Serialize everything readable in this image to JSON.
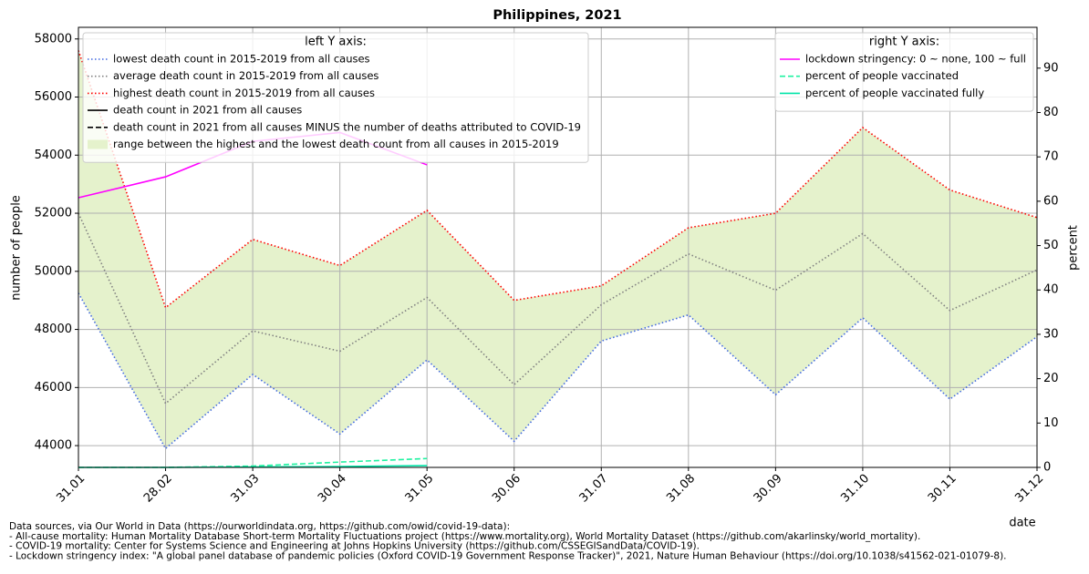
{
  "chart_data": {
    "type": "line",
    "title": "Philippines, 2021",
    "xlabel": "date",
    "ylabel": "number of people",
    "y2label": "percent",
    "categories": [
      "31.01",
      "28.02",
      "31.03",
      "30.04",
      "31.05",
      "30.06",
      "31.07",
      "31.08",
      "30.09",
      "31.10",
      "30.11",
      "31.12"
    ],
    "ylim": [
      43250,
      58400
    ],
    "yticks": [
      44000,
      46000,
      48000,
      50000,
      52000,
      54000,
      56000,
      58000
    ],
    "y2lim": [
      0,
      99.2
    ],
    "y2ticks": [
      0,
      10,
      20,
      30,
      40,
      50,
      60,
      70,
      80,
      90
    ],
    "grid": true,
    "legend_left_title": "left Y axis:",
    "legend_right_title": "right Y axis:",
    "series": [
      {
        "name": "lowest death count in 2015-2019 from all causes",
        "color": "#4169e1",
        "style": "dotted",
        "values": [
          49250,
          43900,
          46450,
          44400,
          46950,
          44150,
          47600,
          48500,
          45750,
          48400,
          45600,
          47750
        ]
      },
      {
        "name": "average death count in 2015-2019 from all causes",
        "color": "#808080",
        "style": "dotted",
        "values": [
          52000,
          45450,
          47950,
          47250,
          49100,
          46100,
          48850,
          50600,
          49350,
          51300,
          48650,
          50050
        ]
      },
      {
        "name": "highest death count in 2015-2019 from all causes",
        "color": "#ff0000",
        "style": "dotted",
        "values": [
          57600,
          48750,
          51100,
          50200,
          52100,
          49000,
          49500,
          51500,
          52000,
          54950,
          52800,
          51850
        ]
      },
      {
        "name": "death count in 2021 from all causes",
        "color": "#000000",
        "style": "solid",
        "values": [
          null,
          null,
          null,
          null,
          null,
          null,
          null,
          null,
          null,
          null,
          null,
          null
        ]
      },
      {
        "name": "death count in 2021 from all causes MINUS the number of deaths attributed to COVID-19",
        "color": "#000000",
        "style": "dashed",
        "values": [
          null,
          null,
          null,
          null,
          null,
          null,
          null,
          null,
          null,
          null,
          null,
          null
        ]
      },
      {
        "name": "lockdown stringency: 0 ~ none, 100 ~ full",
        "color": "#ff00ff",
        "style": "solid",
        "axis": "y2",
        "values": [
          60.8,
          65.5,
          73.5,
          75.5,
          68.2,
          null,
          null,
          null,
          null,
          null,
          null,
          null
        ]
      },
      {
        "name": "percent of people vaccinated",
        "color": "#1ef2a0",
        "style": "dashed",
        "axis": "y2",
        "values": [
          0,
          0,
          0.3,
          1.2,
          2.0,
          null,
          null,
          null,
          null,
          null,
          null,
          null
        ]
      },
      {
        "name": "percent of people vaccinated fully",
        "color": "#00e5a8",
        "style": "solid",
        "axis": "y2",
        "values": [
          0,
          0,
          0.1,
          0.2,
          0.4,
          null,
          null,
          null,
          null,
          null,
          null,
          null
        ]
      }
    ],
    "band": {
      "name": "range between the highest and the lowest death count from all causes in 2015-2019",
      "color": "#e5f2cc",
      "upper": 2,
      "lower": 0
    },
    "notes": [
      "Data sources, via Our World in Data (https://ourworldindata.org, https://github.com/owid/covid-19-data):",
      "- All-cause mortality: Human Mortality Database Short-term Mortality Fluctuations project (https://www.mortality.org), World Mortality Dataset (https://github.com/akarlinsky/world_mortality).",
      "- COVID-19 mortality: Center for Systems Science and Engineering at Johns Hopkins University (https://github.com/CSSEGISandData/COVID-19).",
      "- Lockdown stringency index: \"A global panel database of pandemic policies (Oxford COVID-19 Government Response Tracker)\", 2021, Nature Human Behaviour (https://doi.org/10.1038/s41562-021-01079-8)."
    ]
  }
}
